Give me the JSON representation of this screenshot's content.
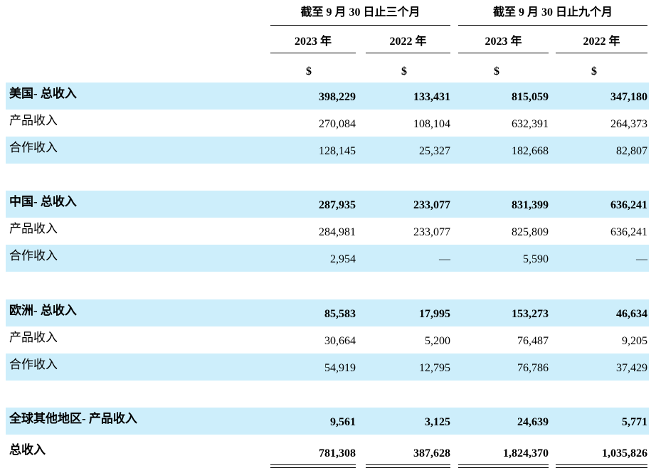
{
  "header": {
    "groups": [
      "截至 9 月 30 日止三个月",
      "截至 9 月 30 日止九个月"
    ],
    "years": [
      "2023 年",
      "2022 年",
      "2023 年",
      "2022 年"
    ],
    "currency": [
      "$",
      "$",
      "$",
      "$"
    ]
  },
  "rows": [
    {
      "label": "美国- 总收入",
      "bold": true,
      "values": [
        "398,229",
        "133,431",
        "815,059",
        "347,180"
      ]
    },
    {
      "label": "产品收入",
      "bold": false,
      "values": [
        "270,084",
        "108,104",
        "632,391",
        "264,373"
      ]
    },
    {
      "label": "合作收入",
      "bold": false,
      "values": [
        "128,145",
        "25,327",
        "182,668",
        "82,807"
      ]
    },
    {
      "label": "中国- 总收入",
      "bold": true,
      "values": [
        "287,935",
        "233,077",
        "831,399",
        "636,241"
      ]
    },
    {
      "label": "产品收入",
      "bold": false,
      "values": [
        "284,981",
        "233,077",
        "825,809",
        "636,241"
      ]
    },
    {
      "label": "合作收入",
      "bold": false,
      "values": [
        "2,954",
        "—",
        "5,590",
        "—"
      ]
    },
    {
      "label": "欧洲- 总收入",
      "bold": true,
      "values": [
        "85,583",
        "17,995",
        "153,273",
        "46,634"
      ]
    },
    {
      "label": "产品收入",
      "bold": false,
      "values": [
        "30,664",
        "5,200",
        "76,487",
        "9,205"
      ]
    },
    {
      "label": "合作收入",
      "bold": false,
      "values": [
        "54,919",
        "12,795",
        "76,786",
        "37,429"
      ]
    },
    {
      "label": "全球其他地区- 产品收入",
      "bold": true,
      "values": [
        "9,561",
        "3,125",
        "24,639",
        "5,771"
      ]
    },
    {
      "label": "总收入",
      "bold": true,
      "values": [
        "781,308",
        "387,628",
        "1,824,370",
        "1,035,826"
      ]
    }
  ]
}
